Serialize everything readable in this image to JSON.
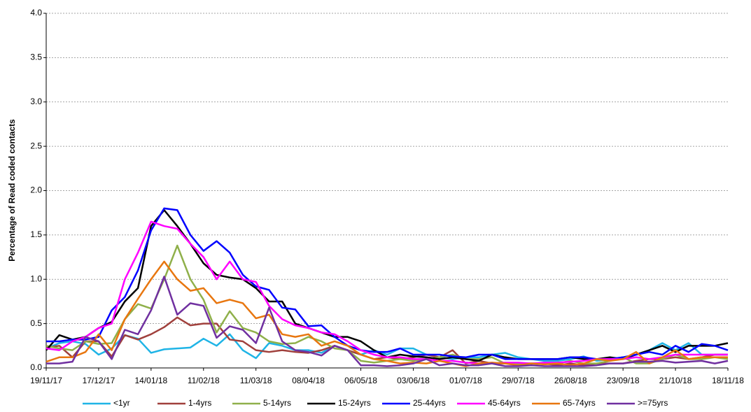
{
  "chart_data": {
    "type": "line",
    "y_label": "Percentage of Read coded contacts",
    "categories": [
      "19/11/17",
      null,
      null,
      null,
      "17/12/17",
      null,
      null,
      null,
      "14/01/18",
      null,
      null,
      null,
      "11/02/18",
      null,
      null,
      null,
      "11/03/18",
      null,
      null,
      null,
      "08/04/18",
      null,
      null,
      null,
      "06/05/18",
      null,
      null,
      null,
      "03/06/18",
      null,
      null,
      null,
      "01/07/18",
      null,
      null,
      null,
      "29/07/18",
      null,
      null,
      null,
      "26/08/18",
      null,
      null,
      null,
      "23/09/18",
      null,
      null,
      null,
      "21/10/18",
      null,
      null,
      null,
      "18/11/18"
    ],
    "ylim": [
      0,
      4
    ],
    "yticks": [
      {
        "value": 0,
        "label": "0.0"
      },
      0.5,
      {
        "value": 1,
        "label": "1.0"
      },
      1.5,
      {
        "value": 2,
        "label": "2.0"
      },
      2.5,
      {
        "value": 3,
        "label": "3.0"
      },
      3.5,
      {
        "value": 4,
        "label": "4.0"
      }
    ],
    "grid": true,
    "legend": "bottom",
    "series": [
      {
        "name": "<1yr",
        "color": "#1fb4e6",
        "values": [
          0.22,
          0.28,
          0.3,
          0.27,
          0.15,
          0.22,
          0.37,
          0.33,
          0.17,
          0.21,
          0.22,
          0.23,
          0.33,
          0.25,
          0.38,
          0.2,
          0.11,
          0.28,
          0.25,
          0.2,
          0.2,
          0.17,
          0.25,
          0.2,
          0.15,
          0.2,
          0.15,
          0.22,
          0.22,
          0.15,
          0.12,
          0.1,
          0.12,
          0.12,
          0.15,
          0.17,
          0.12,
          0.1,
          0.08,
          0.08,
          0.1,
          0.13,
          0.08,
          0.1,
          0.12,
          0.15,
          0.2,
          0.28,
          0.2,
          0.28,
          0.15,
          0.15,
          0.15
        ]
      },
      {
        "name": "1-4yrs",
        "color": "#a0403c",
        "values": [
          0.23,
          0.25,
          0.12,
          0.3,
          0.3,
          0.13,
          0.37,
          0.32,
          0.38,
          0.46,
          0.57,
          0.48,
          0.5,
          0.5,
          0.32,
          0.3,
          0.2,
          0.18,
          0.2,
          0.18,
          0.17,
          0.2,
          0.25,
          0.2,
          0.15,
          0.1,
          0.12,
          0.1,
          0.12,
          0.15,
          0.12,
          0.2,
          0.05,
          0.08,
          0.05,
          0.05,
          0.05,
          0.05,
          0.05,
          0.03,
          0.05,
          0.03,
          0.05,
          0.05,
          0.05,
          0.08,
          0.1,
          0.1,
          0.12,
          0.1,
          0.12,
          0.15,
          0.15
        ]
      },
      {
        "name": "5-14yrs",
        "color": "#8fb04a",
        "values": [
          0.25,
          0.22,
          0.2,
          0.3,
          0.27,
          0.28,
          0.55,
          0.72,
          0.67,
          1.0,
          1.38,
          1.0,
          0.77,
          0.4,
          0.64,
          0.45,
          0.4,
          0.3,
          0.27,
          0.28,
          0.35,
          0.3,
          0.22,
          0.2,
          0.08,
          0.06,
          0.08,
          0.1,
          0.08,
          0.1,
          0.12,
          0.15,
          0.1,
          0.1,
          0.12,
          0.05,
          0.05,
          0.05,
          0.05,
          0.05,
          0.08,
          0.05,
          0.05,
          0.08,
          0.12,
          0.05,
          0.05,
          0.1,
          0.15,
          0.1,
          0.1,
          0.12,
          0.1
        ]
      },
      {
        "name": "15-24yrs",
        "color": "#000000",
        "values": [
          0.2,
          0.37,
          0.32,
          0.35,
          0.45,
          0.52,
          0.75,
          0.9,
          1.6,
          1.78,
          1.6,
          1.4,
          1.18,
          1.05,
          1.02,
          1.0,
          0.9,
          0.75,
          0.75,
          0.5,
          0.45,
          0.4,
          0.35,
          0.35,
          0.3,
          0.2,
          0.12,
          0.15,
          0.13,
          0.12,
          0.1,
          0.12,
          0.1,
          0.08,
          0.15,
          0.12,
          0.1,
          0.1,
          0.1,
          0.1,
          0.12,
          0.1,
          0.1,
          0.12,
          0.1,
          0.15,
          0.2,
          0.25,
          0.18,
          0.25,
          0.25,
          0.25,
          0.28
        ]
      },
      {
        "name": "25-44yrs",
        "color": "#0000ff",
        "values": [
          0.3,
          0.3,
          0.32,
          0.32,
          0.35,
          0.65,
          0.8,
          1.1,
          1.55,
          1.8,
          1.78,
          1.5,
          1.32,
          1.43,
          1.3,
          1.05,
          0.92,
          0.88,
          0.68,
          0.66,
          0.47,
          0.48,
          0.35,
          0.25,
          0.2,
          0.18,
          0.18,
          0.22,
          0.15,
          0.15,
          0.15,
          0.13,
          0.12,
          0.15,
          0.15,
          0.1,
          0.1,
          0.1,
          0.1,
          0.1,
          0.12,
          0.12,
          0.1,
          0.1,
          0.12,
          0.15,
          0.18,
          0.15,
          0.25,
          0.18,
          0.27,
          0.25,
          0.2
        ]
      },
      {
        "name": "45-64yrs",
        "color": "#ff00ff",
        "values": [
          0.22,
          0.2,
          0.3,
          0.35,
          0.45,
          0.5,
          1.0,
          1.3,
          1.65,
          1.6,
          1.57,
          1.4,
          1.25,
          1.0,
          1.2,
          1.0,
          0.97,
          0.7,
          0.55,
          0.48,
          0.45,
          0.4,
          0.38,
          0.3,
          0.2,
          0.15,
          0.12,
          0.12,
          0.1,
          0.1,
          0.08,
          0.08,
          0.06,
          0.05,
          0.05,
          0.06,
          0.06,
          0.05,
          0.06,
          0.06,
          0.07,
          0.08,
          0.1,
          0.1,
          0.1,
          0.12,
          0.1,
          0.12,
          0.15,
          0.15,
          0.15,
          0.15,
          0.15
        ]
      },
      {
        "name": "65-74yrs",
        "color": "#e8760f",
        "values": [
          0.07,
          0.12,
          0.12,
          0.18,
          0.38,
          0.2,
          0.55,
          0.78,
          1.0,
          1.2,
          1.0,
          0.87,
          0.9,
          0.73,
          0.77,
          0.73,
          0.56,
          0.6,
          0.38,
          0.35,
          0.38,
          0.25,
          0.3,
          0.25,
          0.15,
          0.1,
          0.08,
          0.05,
          0.06,
          0.05,
          0.08,
          0.05,
          0.02,
          0.05,
          0.06,
          0.05,
          0.03,
          0.05,
          0.04,
          0.05,
          0.03,
          0.05,
          0.1,
          0.08,
          0.1,
          0.18,
          0.05,
          0.12,
          0.2,
          0.1,
          0.12,
          0.12,
          0.12
        ]
      },
      {
        "name": ">=75yrs",
        "color": "#7030a0",
        "values": [
          0.05,
          0.05,
          0.07,
          0.35,
          0.3,
          0.1,
          0.43,
          0.38,
          0.65,
          1.03,
          0.6,
          0.73,
          0.7,
          0.34,
          0.47,
          0.43,
          0.28,
          0.68,
          0.3,
          0.2,
          0.18,
          0.14,
          0.25,
          0.2,
          0.03,
          0.03,
          0.02,
          0.03,
          0.05,
          0.1,
          0.03,
          0.05,
          0.03,
          0.03,
          0.05,
          0.02,
          0.02,
          0.03,
          0.02,
          0.02,
          0.02,
          0.02,
          0.03,
          0.05,
          0.05,
          0.07,
          0.07,
          0.08,
          0.06,
          0.07,
          0.08,
          0.05,
          0.08
        ]
      }
    ]
  }
}
